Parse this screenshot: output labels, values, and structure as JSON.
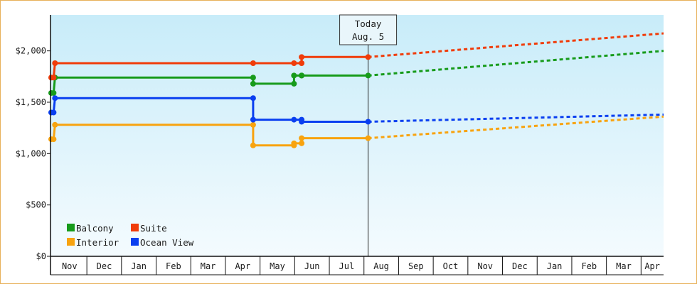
{
  "chart_data": {
    "type": "line",
    "y_ticks": [
      {
        "value": 0,
        "label": "$0"
      },
      {
        "value": 500,
        "label": "$500"
      },
      {
        "value": 1000,
        "label": "$1,000"
      },
      {
        "value": 1500,
        "label": "$1,500"
      },
      {
        "value": 2000,
        "label": "$2,000"
      }
    ],
    "ylim": [
      0,
      2350
    ],
    "x_months": [
      "Nov",
      "Dec",
      "Jan",
      "Feb",
      "Mar",
      "Apr",
      "May",
      "Jun",
      "Jul",
      "Aug",
      "Sep",
      "Oct",
      "Nov",
      "Dec",
      "Jan",
      "Feb",
      "Mar",
      "Apr"
    ],
    "xlim_months": [
      -0.05,
      17.65
    ],
    "today": {
      "title": "Today",
      "date": "Aug. 5",
      "x": 9.12
    },
    "series": [
      {
        "name": "Balcony",
        "color": "#179b1b",
        "points": [
          [
            -0.03,
            1590
          ],
          [
            0.04,
            1590
          ],
          [
            0.08,
            1740
          ],
          [
            5.8,
            1740
          ],
          [
            5.8,
            1680
          ],
          [
            6.98,
            1680
          ],
          [
            6.98,
            1760
          ],
          [
            7.2,
            1760
          ],
          [
            7.2,
            1760
          ],
          [
            9.12,
            1760
          ]
        ],
        "forecast": [
          [
            9.12,
            1760
          ],
          [
            17.65,
            2000
          ]
        ]
      },
      {
        "name": "Suite",
        "color": "#f03c0a",
        "points": [
          [
            -0.03,
            1740
          ],
          [
            0.04,
            1740
          ],
          [
            0.08,
            1880
          ],
          [
            5.8,
            1880
          ],
          [
            6.98,
            1880
          ],
          [
            7.2,
            1880
          ],
          [
            7.2,
            1940
          ],
          [
            9.12,
            1940
          ]
        ],
        "forecast": [
          [
            9.12,
            1940
          ],
          [
            17.65,
            2170
          ]
        ]
      },
      {
        "name": "Interior",
        "color": "#f8a30f",
        "points": [
          [
            -0.03,
            1140
          ],
          [
            0.04,
            1140
          ],
          [
            0.08,
            1280
          ],
          [
            5.8,
            1280
          ],
          [
            5.8,
            1080
          ],
          [
            6.98,
            1080
          ],
          [
            6.98,
            1100
          ],
          [
            7.2,
            1100
          ],
          [
            7.2,
            1150
          ],
          [
            9.12,
            1150
          ]
        ],
        "forecast": [
          [
            9.12,
            1150
          ],
          [
            17.65,
            1360
          ]
        ]
      },
      {
        "name": "Ocean View",
        "color": "#0a3ff0",
        "points": [
          [
            -0.03,
            1400
          ],
          [
            0.04,
            1400
          ],
          [
            0.08,
            1540
          ],
          [
            5.8,
            1540
          ],
          [
            5.8,
            1330
          ],
          [
            6.98,
            1330
          ],
          [
            7.2,
            1330
          ],
          [
            7.2,
            1310
          ],
          [
            9.12,
            1310
          ]
        ],
        "forecast": [
          [
            9.12,
            1310
          ],
          [
            17.65,
            1380
          ]
        ]
      }
    ],
    "legend": [
      "Balcony",
      "Suite",
      "Interior",
      "Ocean View"
    ],
    "legend_position": "bottom-left",
    "background_gradient": [
      "#c8ecf9",
      "#f4fbfe"
    ]
  }
}
